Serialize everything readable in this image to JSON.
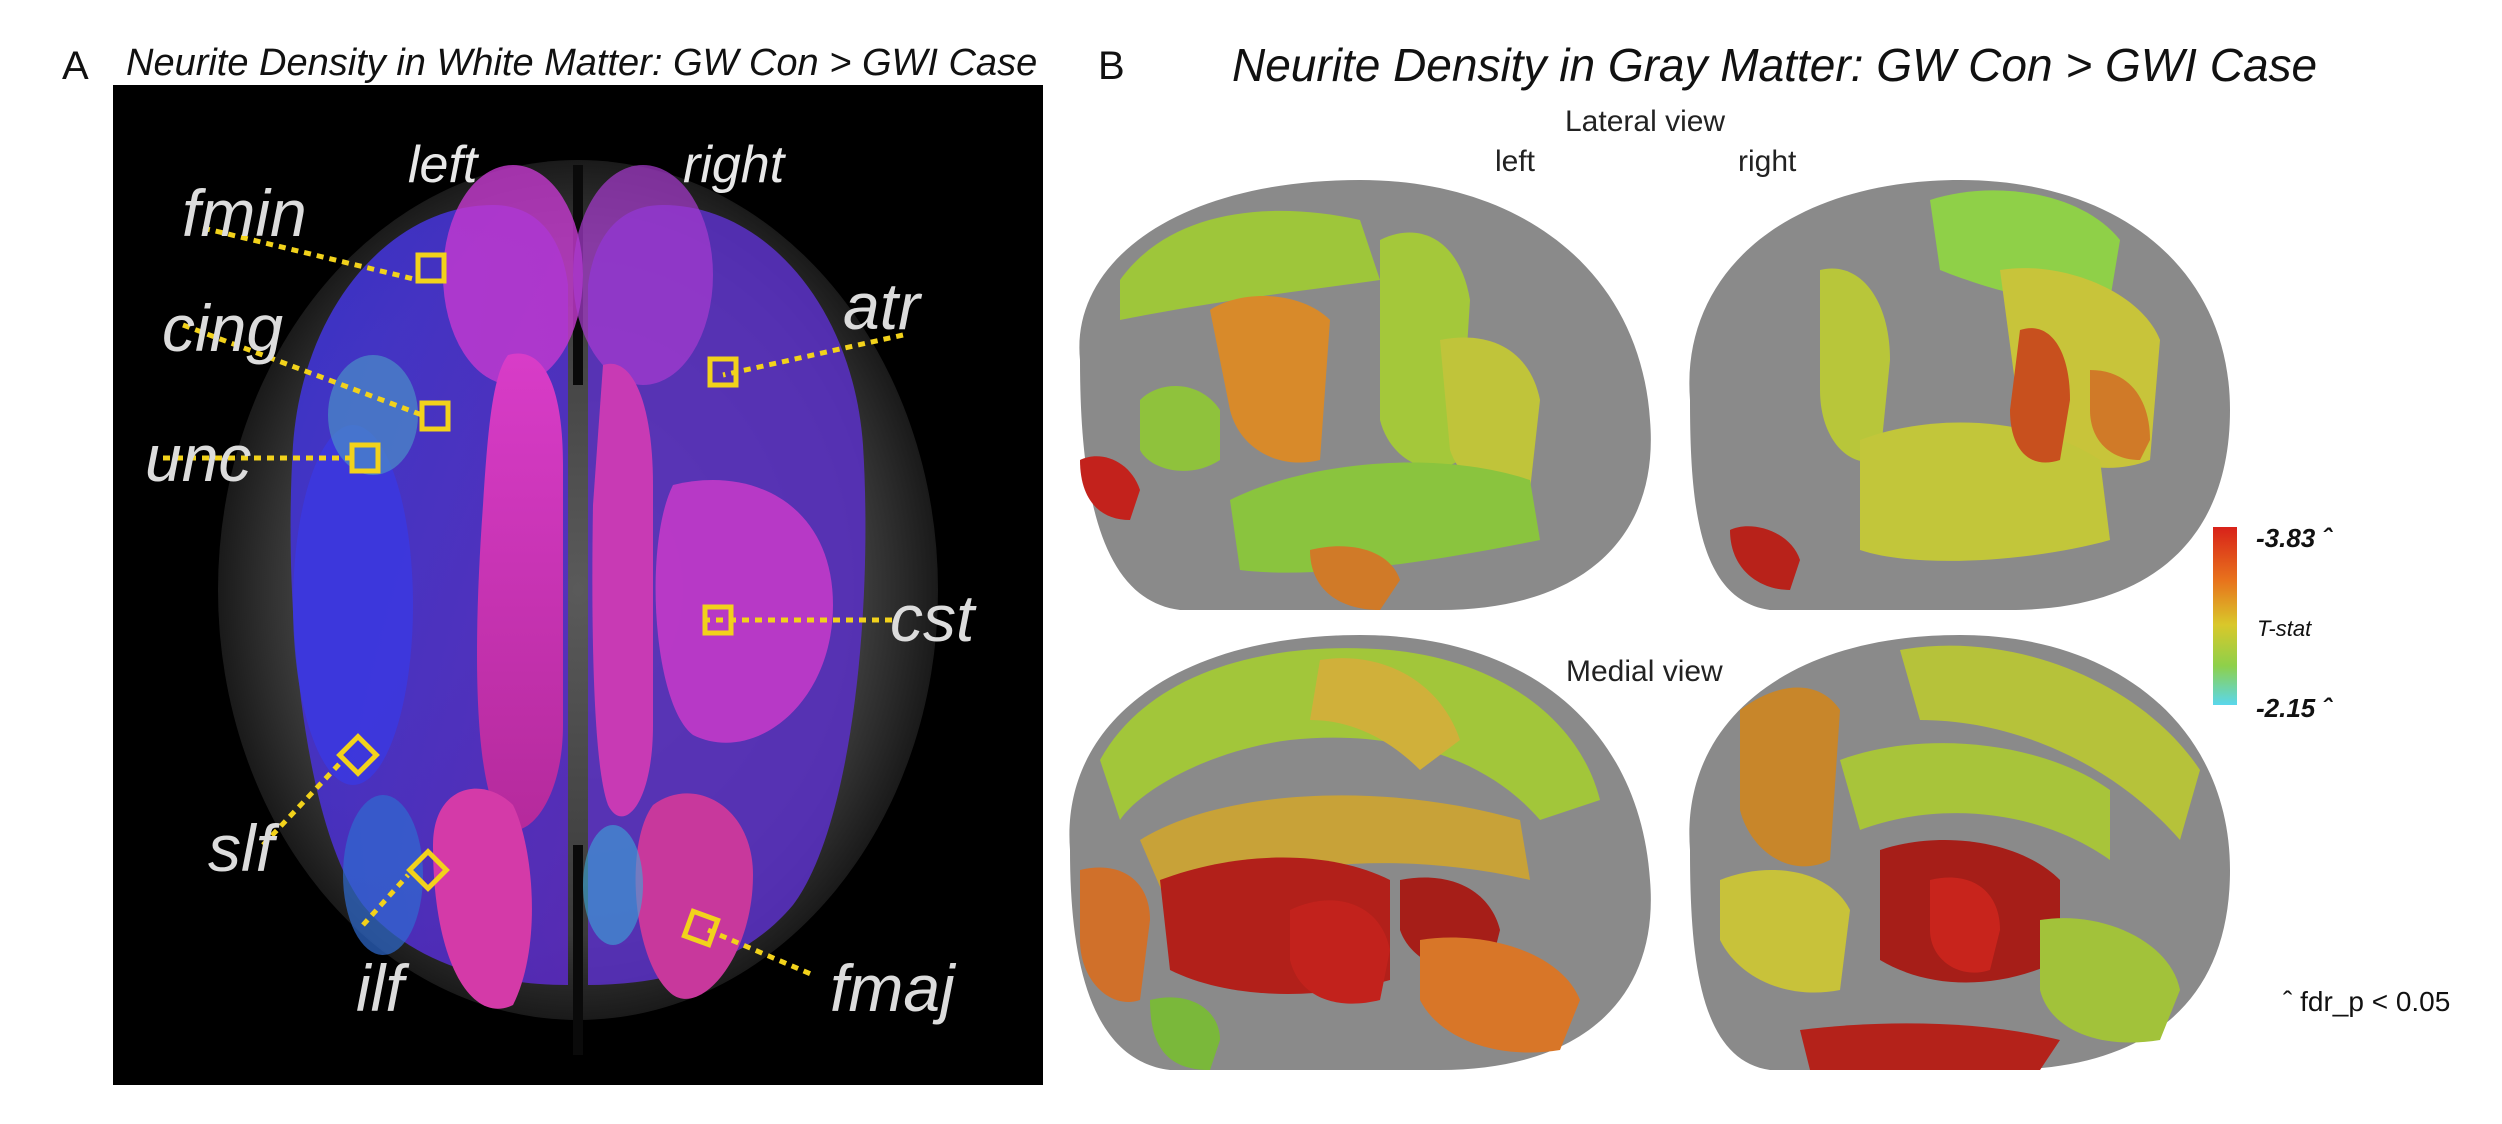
{
  "panel_a": {
    "letter": "A",
    "title": "Neurite Density in White Matter: GW Con > GWI Case",
    "hemi_left": "left",
    "hemi_right": "right",
    "tracts": {
      "fmin": "fmin",
      "cing": "cing",
      "unc": "unc",
      "atr": "atr",
      "cst": "cst",
      "slf": "slf",
      "ilf": "ilf",
      "fmaj": "fmaj"
    }
  },
  "panel_b": {
    "letter": "B",
    "title": "Neurite Density in Gray Matter: GW Con > GWI Case",
    "lateral_view": "Lateral view",
    "medial_view": "Medial view",
    "hemi_left": "left",
    "hemi_right": "right",
    "colorbar": {
      "max_label": "-3.83 ˆ",
      "mid_label": "T-stat",
      "min_label": "-2.15 ˆ",
      "colors": [
        "#d8221a",
        "#e8731c",
        "#d9c82a",
        "#8ed04a",
        "#5ad7ec"
      ]
    },
    "footnote": "ˆ fdr_p < 0.05"
  }
}
